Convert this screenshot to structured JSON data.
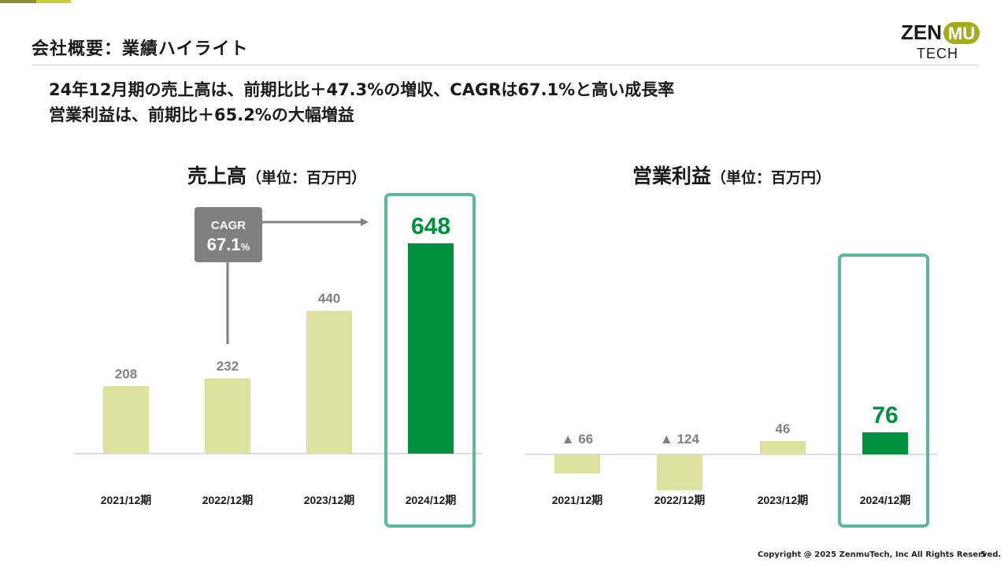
{
  "header": {
    "title": "会社概要：業績ハイライト",
    "logo_top": "ZEN",
    "logo_badge": "MU",
    "logo_bottom": "TECH"
  },
  "lead": {
    "line1": "24年12月期の売上高は、前期比比＋47.3%の増収、CAGRは67.1%と高い成長率",
    "line2": "営業利益は、前期比＋65.2%の大幅増益"
  },
  "colors": {
    "bar_light": "#dde39e",
    "bar_highlight": "#009140",
    "highlight_frame": "#5cb89a",
    "label_gray": "#808080",
    "cagr_box": "#808080"
  },
  "chart_data": [
    {
      "type": "bar",
      "title": "売上高",
      "unit_label": "（単位：百万円）",
      "categories": [
        "2021/12期",
        "2022/12期",
        "2023/12期",
        "2024/12期"
      ],
      "values": [
        208,
        232,
        440,
        648
      ],
      "value_labels": [
        "208",
        "232",
        "440",
        "648"
      ],
      "highlight_index": 3,
      "ylim": [
        0,
        700
      ],
      "annotation": {
        "label": "CAGR",
        "value": "67.1",
        "suffix": "%"
      }
    },
    {
      "type": "bar",
      "title": "営業利益",
      "unit_label": "（単位：百万円）",
      "categories": [
        "2021/12期",
        "2022/12期",
        "2023/12期",
        "2024/12期"
      ],
      "values": [
        -66,
        -124,
        46,
        76
      ],
      "value_labels": [
        "▲ 66",
        "▲ 124",
        "46",
        "76"
      ],
      "highlight_index": 3,
      "ylim": [
        -130,
        230
      ]
    }
  ],
  "footer": {
    "copyright": "Copyright @ 2025 ZenmuTech, Inc All Rights Reserved.",
    "page": "5"
  }
}
